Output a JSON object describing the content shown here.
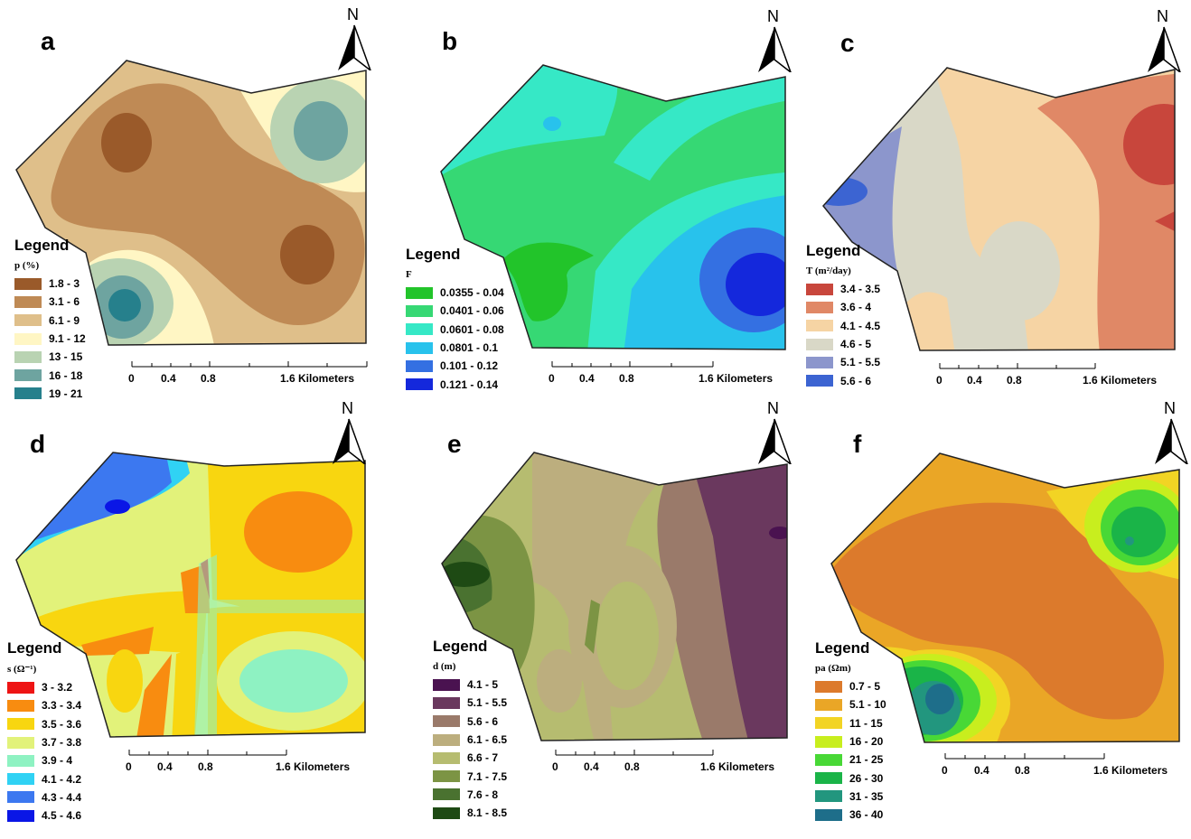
{
  "north_label": "N",
  "legend_title": "Legend",
  "scale": {
    "ticks": [
      "0",
      "0.4",
      "0.8"
    ],
    "end_label": "1.6 Kilometers"
  },
  "panels": {
    "a": {
      "letter": "a",
      "field": "p (%)",
      "classes": [
        {
          "label": "1.8 - 3",
          "color": "#9a5a2a"
        },
        {
          "label": "3.1 - 6",
          "color": "#bf8a55"
        },
        {
          "label": "6.1 - 9",
          "color": "#dfbf8a"
        },
        {
          "label": "9.1 - 12",
          "color": "#fff6c4"
        },
        {
          "label": "13 - 15",
          "color": "#b9d3b2"
        },
        {
          "label": "16 - 18",
          "color": "#6ea4a0"
        },
        {
          "label": "19 - 21",
          "color": "#26808c"
        }
      ]
    },
    "b": {
      "letter": "b",
      "field": "F",
      "classes": [
        {
          "label": "0.0355 - 0.04",
          "color": "#22c42a"
        },
        {
          "label": "0.0401 - 0.06",
          "color": "#36d874"
        },
        {
          "label": "0.0601 - 0.08",
          "color": "#36e8c6"
        },
        {
          "label": "0.0801 - 0.1",
          "color": "#28c2ec"
        },
        {
          "label": "0.101 - 0.12",
          "color": "#3470e2"
        },
        {
          "label": "0.121 - 0.14",
          "color": "#1428dc"
        }
      ]
    },
    "c": {
      "letter": "c",
      "field": "T (m²/day)",
      "classes": [
        {
          "label": "3.4 - 3.5",
          "color": "#c8463c"
        },
        {
          "label": "3.6 - 4",
          "color": "#e08866"
        },
        {
          "label": "4.1 - 4.5",
          "color": "#f6d4a4"
        },
        {
          "label": "4.6 - 5",
          "color": "#d9d8c7"
        },
        {
          "label": "5.1 - 5.5",
          "color": "#8c96cc"
        },
        {
          "label": "5.6 - 6",
          "color": "#3c64d2"
        }
      ]
    },
    "d": {
      "letter": "d",
      "field": "s (Ω⁻¹)",
      "classes": [
        {
          "label": "3 - 3.2",
          "color": "#ee1414"
        },
        {
          "label": "3.3 - 3.4",
          "color": "#f88c10"
        },
        {
          "label": "3.5 - 3.6",
          "color": "#f8d610"
        },
        {
          "label": "3.7 - 3.8",
          "color": "#e2f27a"
        },
        {
          "label": "3.9 - 4",
          "color": "#8ef2c2"
        },
        {
          "label": "4.1 - 4.2",
          "color": "#30d2f4"
        },
        {
          "label": "4.3 - 4.4",
          "color": "#3c78f0"
        },
        {
          "label": "4.5 - 4.6",
          "color": "#0a16e6"
        }
      ]
    },
    "e": {
      "letter": "e",
      "field": "d (m)",
      "classes": [
        {
          "label": "4.1 - 5",
          "color": "#4a1250"
        },
        {
          "label": "5.1 - 5.5",
          "color": "#6a385e"
        },
        {
          "label": "5.6 - 6",
          "color": "#9a7a6a"
        },
        {
          "label": "6.1 - 6.5",
          "color": "#bcae7e"
        },
        {
          "label": "6.6 - 7",
          "color": "#b6bc70"
        },
        {
          "label": "7.1 - 7.5",
          "color": "#7c9444"
        },
        {
          "label": "7.6 - 8",
          "color": "#4a7230"
        },
        {
          "label": "8.1 - 8.5",
          "color": "#1e4a14"
        }
      ]
    },
    "f": {
      "letter": "f",
      "field": "pa (Ωm)",
      "classes": [
        {
          "label": "0.7 - 5",
          "color": "#dc7a2c"
        },
        {
          "label": "5.1 - 10",
          "color": "#eaa626"
        },
        {
          "label": "11 - 15",
          "color": "#f2d424"
        },
        {
          "label": "16 - 20",
          "color": "#c8ee1e"
        },
        {
          "label": "21 - 25",
          "color": "#48d836"
        },
        {
          "label": "26 - 30",
          "color": "#1ab448"
        },
        {
          "label": "31 - 35",
          "color": "#22967e"
        },
        {
          "label": "36 - 40",
          "color": "#1e6e8a"
        }
      ]
    }
  }
}
